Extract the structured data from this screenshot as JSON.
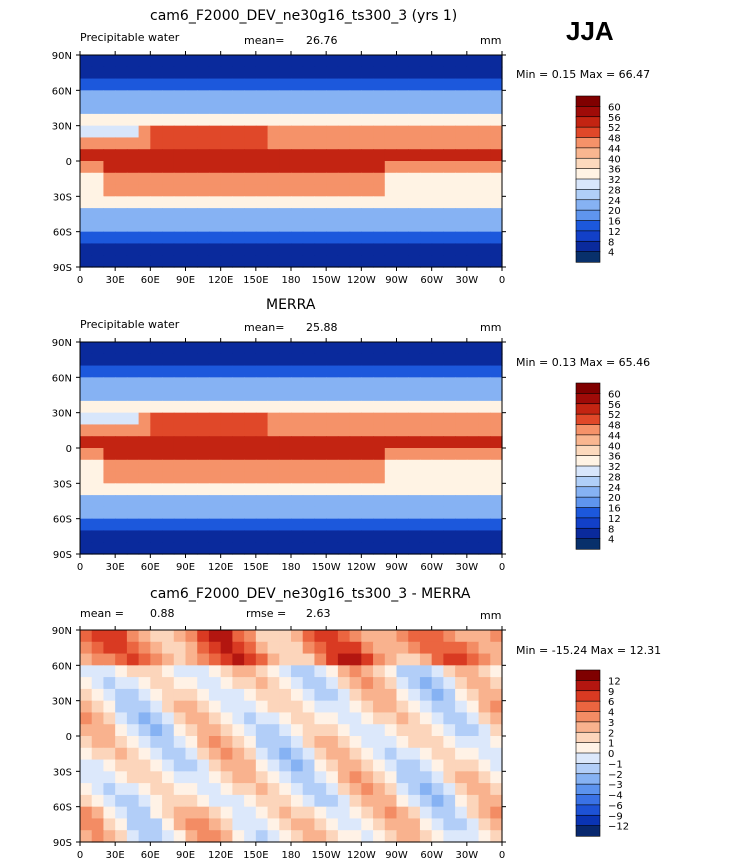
{
  "season": "JJA",
  "x_tick_labels": [
    "0",
    "30E",
    "60E",
    "90E",
    "120E",
    "150E",
    "180",
    "150W",
    "120W",
    "90W",
    "60W",
    "30W",
    "0"
  ],
  "y_tick_labels": [
    "90N",
    "60N",
    "30N",
    "0",
    "30S",
    "60S",
    "90S"
  ],
  "colors": {
    "abs_scale": [
      "#08306b",
      "#0a2a9c",
      "#1240c8",
      "#1c58dc",
      "#3b78e6",
      "#5f95ee",
      "#86b2f3",
      "#b0cff8",
      "#d8e6fb",
      "#fff3e4",
      "#fcd9bd",
      "#f9b690",
      "#f59269",
      "#ee6b45",
      "#e04829",
      "#c32412",
      "#9f0b08",
      "#800000"
    ],
    "diff_scale": [
      "#08286e",
      "#0a34b4",
      "#1d52d6",
      "#3a72e6",
      "#5c93ee",
      "#86b2f3",
      "#b2cef8",
      "#dce8fb",
      "#fff2e6",
      "#fcd5bb",
      "#f9b28e",
      "#f38c64",
      "#eb6540",
      "#d93a22",
      "#b31610",
      "#7f0000"
    ]
  },
  "chart_data": [
    {
      "type": "heatmap",
      "title": "cam6_F2000_DEV_ne30g16_ts300_3 (yrs 1)",
      "left_label": "Precipitable water",
      "mean_label": "mean=",
      "mean_value": "26.76",
      "units": "mm",
      "min_text": "Min =   0.15 Max =  66.47",
      "min": 0.15,
      "max": 66.47,
      "colorbar_levels": [
        "60",
        "56",
        "52",
        "48",
        "44",
        "40",
        "36",
        "32",
        "28",
        "24",
        "20",
        "16",
        "12",
        "8",
        "4"
      ]
    },
    {
      "type": "heatmap",
      "title": "MERRA",
      "left_label": "Precipitable water",
      "mean_label": "mean=",
      "mean_value": "25.88",
      "units": "mm",
      "min_text": "Min =   0.13 Max =  65.46",
      "min": 0.13,
      "max": 65.46,
      "colorbar_levels": [
        "60",
        "56",
        "52",
        "48",
        "44",
        "40",
        "36",
        "32",
        "28",
        "24",
        "20",
        "16",
        "12",
        "8",
        "4"
      ]
    },
    {
      "type": "heatmap",
      "title": "cam6_F2000_DEV_ne30g16_ts300_3 - MERRA",
      "left_label": "mean =",
      "mean_label": "0.88",
      "mean_value": "rmse =",
      "extra_value": "2.63",
      "units": "mm",
      "min_text": "Min = -15.24 Max =  12.31",
      "min": -15.24,
      "max": 12.31,
      "colorbar_levels": [
        "12",
        "9",
        "6",
        "4",
        "3",
        "2",
        "1",
        "0",
        "−1",
        "−2",
        "−3",
        "−4",
        "−6",
        "−9",
        "−12"
      ]
    }
  ]
}
